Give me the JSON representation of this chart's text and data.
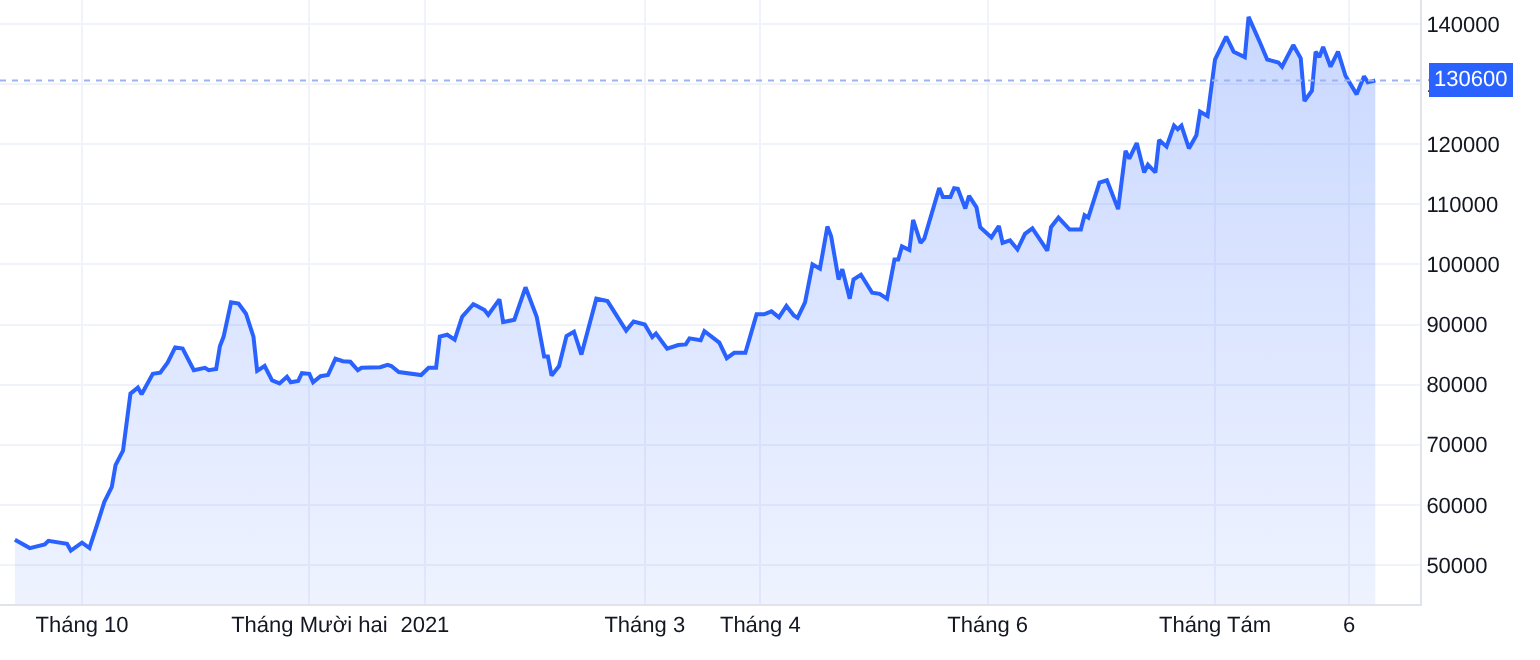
{
  "chart_data": {
    "type": "area",
    "x": [
      "2020-09-13",
      "2020-09-17",
      "2020-09-21",
      "2020-09-22",
      "2020-09-27",
      "2020-09-28",
      "2020-10-01",
      "2020-10-03",
      "2020-10-05",
      "2020-10-07",
      "2020-10-09",
      "2020-10-10",
      "2020-10-12",
      "2020-10-14",
      "2020-10-16",
      "2020-10-17",
      "2020-10-20",
      "2020-10-22",
      "2020-10-24",
      "2020-10-26",
      "2020-10-28",
      "2020-10-31",
      "2020-11-03",
      "2020-11-04",
      "2020-11-06",
      "2020-11-07",
      "2020-11-08",
      "2020-11-10",
      "2020-11-12",
      "2020-11-14",
      "2020-11-16",
      "2020-11-17",
      "2020-11-19",
      "2020-11-21",
      "2020-11-23",
      "2020-11-25",
      "2020-11-26",
      "2020-11-28",
      "2020-11-29",
      "2020-12-01",
      "2020-12-02",
      "2020-12-04",
      "2020-12-06",
      "2020-12-08",
      "2020-12-10",
      "2020-12-12",
      "2020-12-14",
      "2020-12-15",
      "2020-12-20",
      "2020-12-22",
      "2020-12-23",
      "2020-12-25",
      "2020-12-31",
      "2021-01-02",
      "2021-01-04",
      "2021-01-05",
      "2021-01-07",
      "2021-01-09",
      "2021-01-11",
      "2021-01-14",
      "2021-01-15",
      "2021-01-17",
      "2021-01-18",
      "2021-01-21",
      "2021-01-22",
      "2021-01-25",
      "2021-01-28",
      "2021-01-31",
      "2021-02-02",
      "2021-02-03",
      "2021-02-04",
      "2021-02-06",
      "2021-02-08",
      "2021-02-10",
      "2021-02-12",
      "2021-02-16",
      "2021-02-19",
      "2021-02-24",
      "2021-02-26",
      "2021-03-01",
      "2021-03-03",
      "2021-03-04",
      "2021-03-07",
      "2021-03-10",
      "2021-03-12",
      "2021-03-13",
      "2021-03-16",
      "2021-03-17",
      "2021-03-21",
      "2021-03-23",
      "2021-03-25",
      "2021-03-28",
      "2021-03-31",
      "2021-04-02",
      "2021-04-04",
      "2021-04-06",
      "2021-04-08",
      "2021-04-10",
      "2021-04-11",
      "2021-04-13",
      "2021-04-15",
      "2021-04-17",
      "2021-04-19",
      "2021-04-20",
      "2021-04-22",
      "2021-04-23",
      "2021-04-25",
      "2021-04-26",
      "2021-04-28",
      "2021-05-01",
      "2021-05-03",
      "2021-05-05",
      "2021-05-07",
      "2021-05-08",
      "2021-05-09",
      "2021-05-11",
      "2021-05-12",
      "2021-05-14",
      "2021-05-15",
      "2021-05-19",
      "2021-05-20",
      "2021-05-22",
      "2021-05-23",
      "2021-05-24",
      "2021-05-26",
      "2021-05-27",
      "2021-05-29",
      "2021-05-30",
      "2021-06-02",
      "2021-06-04",
      "2021-06-05",
      "2021-06-07",
      "2021-06-09",
      "2021-06-11",
      "2021-06-13",
      "2021-06-14",
      "2021-06-17",
      "2021-06-18",
      "2021-06-20",
      "2021-06-23",
      "2021-06-26",
      "2021-06-27",
      "2021-06-28",
      "2021-07-01",
      "2021-07-03",
      "2021-07-06",
      "2021-07-08",
      "2021-07-09",
      "2021-07-11",
      "2021-07-13",
      "2021-07-14",
      "2021-07-16",
      "2021-07-17",
      "2021-07-19",
      "2021-07-21",
      "2021-07-22",
      "2021-07-23",
      "2021-07-25",
      "2021-07-27",
      "2021-07-28",
      "2021-07-30",
      "2021-08-01",
      "2021-08-04",
      "2021-08-06",
      "2021-08-09",
      "2021-08-10",
      "2021-08-13",
      "2021-08-15",
      "2021-08-18",
      "2021-08-19",
      "2021-08-22",
      "2021-08-24",
      "2021-08-25",
      "2021-08-27",
      "2021-08-28",
      "2021-08-29",
      "2021-08-30",
      "2021-09-01",
      "2021-09-03",
      "2021-09-05",
      "2021-09-08",
      "2021-09-10",
      "2021-09-11",
      "2021-09-13"
    ],
    "series": [
      {
        "color": "#2962ff",
        "values": [
          54200,
          52800,
          53400,
          54000,
          53500,
          52400,
          53700,
          52800,
          56600,
          60500,
          63000,
          66600,
          69000,
          78500,
          79500,
          78400,
          81800,
          82000,
          83700,
          86200,
          86000,
          82400,
          82800,
          82400,
          82600,
          86400,
          88000,
          93700,
          93500,
          91800,
          88000,
          82300,
          83100,
          80700,
          80200,
          81300,
          80400,
          80600,
          81900,
          81800,
          80400,
          81400,
          81600,
          84300,
          83900,
          83800,
          82400,
          82800,
          82900,
          83300,
          83100,
          82100,
          81600,
          82800,
          82800,
          88000,
          88300,
          87500,
          91300,
          93400,
          93100,
          92400,
          91600,
          94200,
          90400,
          90800,
          96200,
          91300,
          84700,
          84700,
          81500,
          83100,
          88100,
          88800,
          85000,
          94300,
          93900,
          89000,
          90500,
          90000,
          87900,
          88500,
          86000,
          86600,
          86700,
          87700,
          87400,
          88900,
          87000,
          84400,
          85300,
          85300,
          91700,
          91700,
          92200,
          91200,
          93100,
          91500,
          91100,
          93700,
          100000,
          99300,
          106300,
          104700,
          97500,
          99200,
          94300,
          97500,
          98300,
          95300,
          95100,
          94300,
          100800,
          100800,
          103000,
          102400,
          107400,
          103600,
          104300,
          112700,
          111200,
          111200,
          112700,
          112600,
          109300,
          111400,
          109500,
          106200,
          104500,
          106400,
          103600,
          104000,
          102500,
          105100,
          106000,
          105100,
          102300,
          106200,
          107800,
          105800,
          105800,
          108200,
          107800,
          113600,
          114000,
          109200,
          118900,
          117600,
          120200,
          115300,
          116600,
          115300,
          120700,
          119600,
          123100,
          122500,
          123100,
          119300,
          121500,
          125400,
          124700,
          134100,
          137900,
          135400,
          134500,
          141200,
          137000,
          134100,
          133600,
          132900,
          136500,
          134300,
          127200,
          128900,
          135400,
          134500,
          136200,
          132900,
          135400,
          131400,
          128300,
          131300,
          130300,
          130600
        ]
      }
    ],
    "xlim": [
      "2020-09-09",
      "2021-09-25"
    ],
    "xticks": [
      {
        "value": "2020-10-01",
        "label": "Tháng 10"
      },
      {
        "value": "2020-12-01",
        "label": "Tháng Mười hai"
      },
      {
        "value": "2021-01-01",
        "label": "2021"
      },
      {
        "value": "2021-03-01",
        "label": "Tháng 3"
      },
      {
        "value": "2021-04-01",
        "label": "Tháng 4"
      },
      {
        "value": "2021-06-01",
        "label": "Tháng 6"
      },
      {
        "value": "2021-08-01",
        "label": "Tháng Tám"
      },
      {
        "value": "2021-09-06",
        "label": "6"
      }
    ],
    "ylim": [
      43500,
      144000
    ],
    "yticks": [
      50000,
      60000,
      70000,
      80000,
      90000,
      100000,
      110000,
      120000,
      130000,
      140000
    ],
    "ref_lines": [
      {
        "axis": "y",
        "value": 130600,
        "label": "130600",
        "color": "#9db4f0",
        "line_style": "dotted"
      }
    ],
    "grid": true,
    "legend": false
  }
}
